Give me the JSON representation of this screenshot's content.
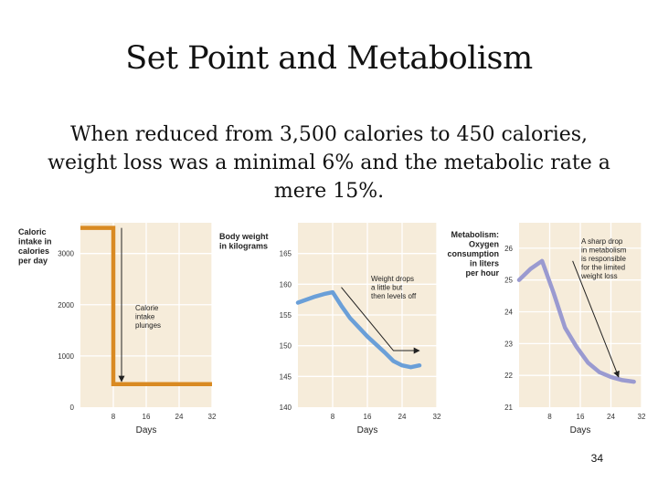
{
  "slide": {
    "title": "Set Point and Metabolism",
    "subtitle": "When reduced from 3,500 calories to 450 calories, weight loss was a minimal 6% and the metabolic rate a mere 15%.",
    "page_number": "34"
  },
  "chart_data": [
    {
      "type": "line",
      "title": "",
      "ylabel": [
        "Caloric",
        "intake in",
        "calories",
        "per day"
      ],
      "xlabel": "Days",
      "x_ticks": [
        8,
        16,
        24,
        32
      ],
      "y_ticks": [
        0,
        1000,
        2000,
        3000
      ],
      "xlim": [
        0,
        32
      ],
      "ylim": [
        0,
        3600
      ],
      "color": "#d98a22",
      "series": [
        {
          "name": "Caloric intake",
          "x": [
            0,
            8,
            8,
            32
          ],
          "y": [
            3500,
            3500,
            450,
            450
          ]
        }
      ],
      "annotation": [
        "Calorie",
        "intake",
        "plunges"
      ],
      "arrow": {
        "x": [
          10,
          10
        ],
        "y": [
          3500,
          500
        ]
      }
    },
    {
      "type": "line",
      "title": "",
      "ylabel": [
        "Body weight",
        "in kilograms"
      ],
      "xlabel": "Days",
      "x_ticks": [
        8,
        16,
        24,
        32
      ],
      "y_ticks": [
        140,
        145,
        150,
        155,
        160,
        165
      ],
      "xlim": [
        0,
        32
      ],
      "ylim": [
        140,
        170
      ],
      "color": "#6a9fd8",
      "series": [
        {
          "name": "Body weight",
          "x": [
            0,
            2,
            4,
            6,
            8,
            10,
            12,
            14,
            16,
            18,
            20,
            22,
            24,
            26,
            28
          ],
          "y": [
            157,
            157.5,
            158,
            158.4,
            158.7,
            156.5,
            154.5,
            153,
            151.5,
            150.2,
            148.9,
            147.5,
            146.8,
            146.5,
            146.8
          ]
        }
      ],
      "annotation": [
        "Weight drops",
        "a little but",
        "then levels off"
      ],
      "arrow": {
        "x": [
          10,
          22,
          28
        ],
        "y": [
          159.5,
          149.2,
          149.2
        ]
      }
    },
    {
      "type": "line",
      "title": "",
      "ylabel": [
        "Metabolism:",
        "Oxygen",
        "consumption",
        "in liters",
        "per hour"
      ],
      "xlabel": "Days",
      "x_ticks": [
        8,
        16,
        24,
        32
      ],
      "y_ticks": [
        21,
        22,
        23,
        24,
        25,
        26
      ],
      "xlim": [
        0,
        32
      ],
      "ylim": [
        21,
        26.8
      ],
      "color": "#9a9ad0",
      "series": [
        {
          "name": "Oxygen consumption",
          "x": [
            0,
            3,
            6,
            9,
            12,
            15,
            18,
            21,
            24,
            27,
            30
          ],
          "y": [
            25,
            25.35,
            25.6,
            24.6,
            23.5,
            22.9,
            22.4,
            22.1,
            21.95,
            21.85,
            21.8
          ]
        }
      ],
      "annotation": [
        "A sharp drop",
        "in metabolism",
        "is responsible",
        "for the limited",
        "weight loss"
      ],
      "arrow": {
        "x": [
          14,
          26
        ],
        "y": [
          25.6,
          21.95
        ]
      }
    }
  ]
}
